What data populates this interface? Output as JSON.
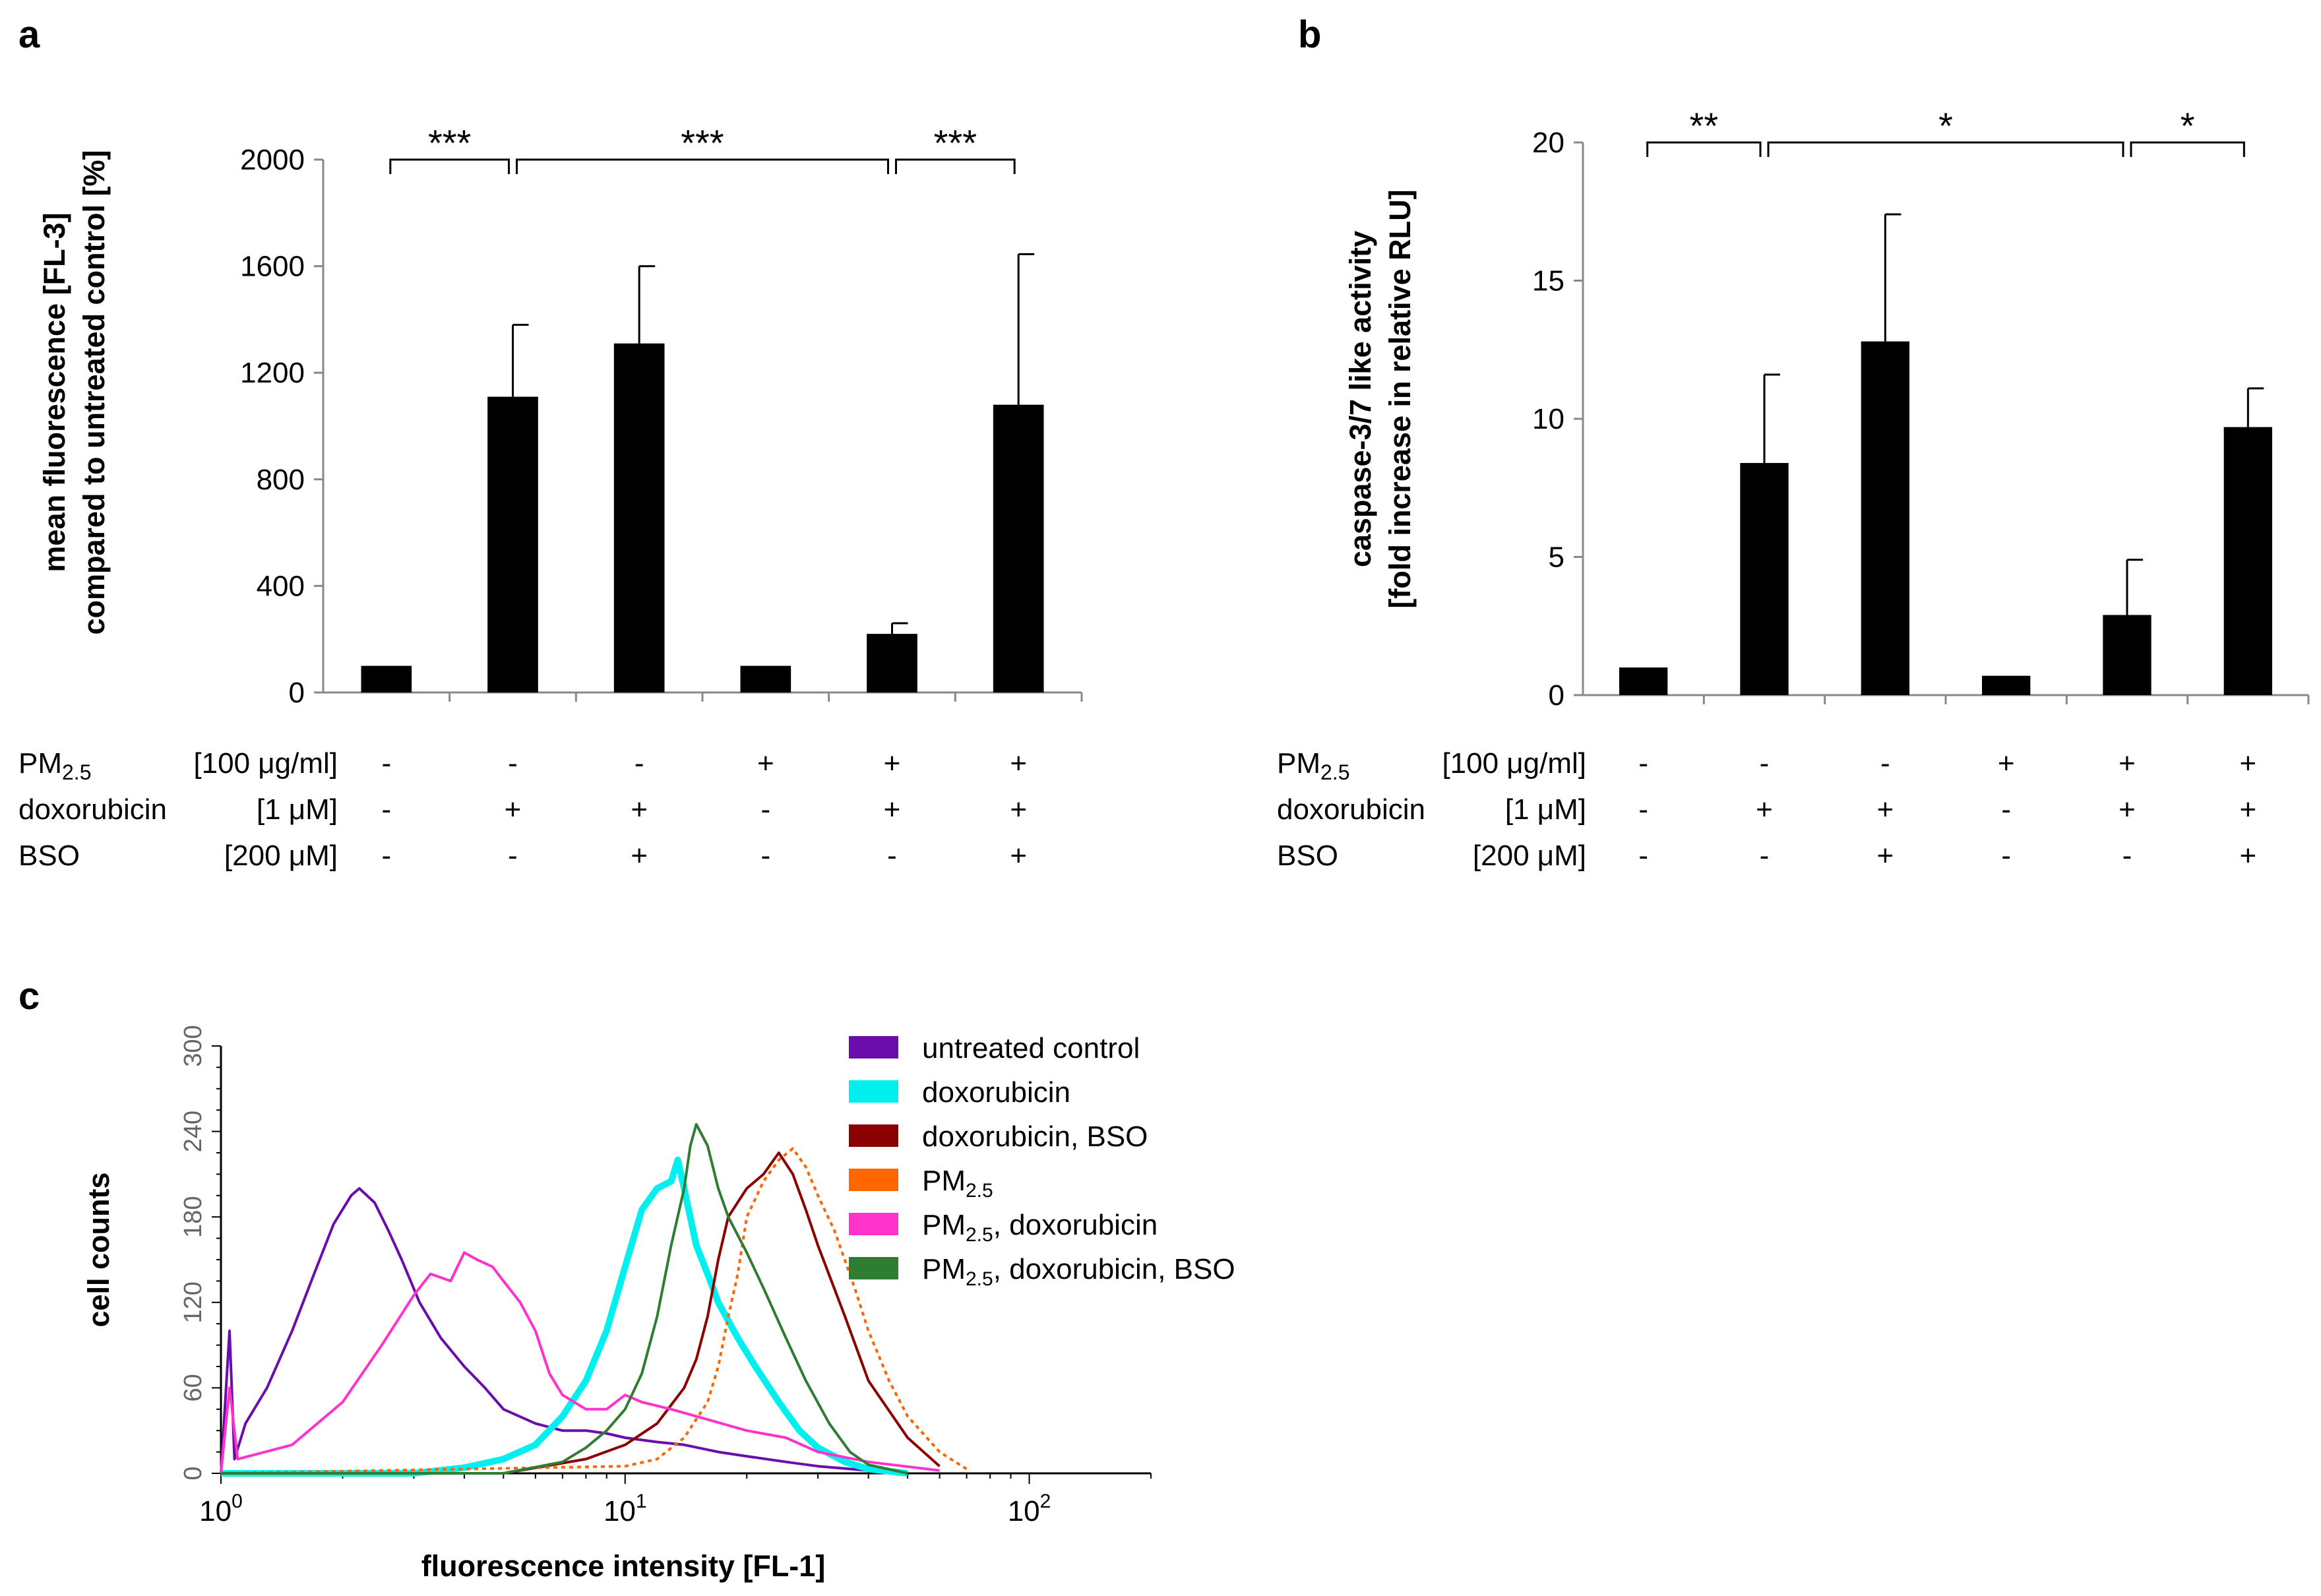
{
  "panels": {
    "a": {
      "label": "a"
    },
    "b": {
      "label": "b"
    },
    "c": {
      "label": "c"
    }
  },
  "conditions": {
    "rows": [
      {
        "name": "PM",
        "sub": "2.5",
        "conc": "[100 μg/ml]",
        "values": [
          "-",
          "-",
          "-",
          "+",
          "+",
          "+"
        ]
      },
      {
        "name": "doxorubicin",
        "sub": "",
        "conc": "[1 μM]",
        "values": [
          "-",
          "+",
          "+",
          "-",
          "+",
          "+"
        ]
      },
      {
        "name": "BSO",
        "sub": "",
        "conc": "[200 μM]",
        "values": [
          "-",
          "-",
          "+",
          "-",
          "-",
          "+"
        ]
      }
    ]
  },
  "chart_data": [
    {
      "panel": "a",
      "type": "bar",
      "ylabel_line1": "mean fluorescence  [FL-3]",
      "ylabel_line2": "compared to untreated control [%]",
      "ylim": [
        0,
        2000
      ],
      "yticks": [
        0,
        400,
        800,
        1200,
        1600,
        2000
      ],
      "values": [
        100,
        1110,
        1310,
        100,
        220,
        1080
      ],
      "errors": [
        0,
        270,
        290,
        0,
        40,
        565
      ],
      "significance": [
        {
          "from": 0,
          "to": 1,
          "label": "***"
        },
        {
          "from": 1,
          "to": 4,
          "label": "***"
        },
        {
          "from": 4,
          "to": 5,
          "label": "***"
        }
      ],
      "sig_level": 2000
    },
    {
      "panel": "b",
      "type": "bar",
      "ylabel_line1": "caspase-3/7 like activity",
      "ylabel_line2": "[fold increase in relative RLU]",
      "ylim": [
        0,
        20
      ],
      "yticks": [
        0,
        5,
        10,
        15,
        20
      ],
      "values": [
        1.0,
        8.4,
        12.8,
        0.7,
        2.9,
        9.7
      ],
      "errors": [
        0,
        3.2,
        4.6,
        0,
        2.0,
        1.4
      ],
      "significance": [
        {
          "from": 0,
          "to": 1,
          "label": "**"
        },
        {
          "from": 1,
          "to": 4,
          "label": "*"
        },
        {
          "from": 4,
          "to": 5,
          "label": "*"
        }
      ],
      "sig_level": 20
    },
    {
      "panel": "c",
      "type": "line",
      "xlabel": "fluorescence  intensity  [FL-1]",
      "ylabel": "cell counts",
      "xscale": "log",
      "xlim": [
        1,
        200
      ],
      "xticks": [
        {
          "base": "10",
          "exp": "0",
          "value": 1
        },
        {
          "base": "10",
          "exp": "1",
          "value": 10
        },
        {
          "base": "10",
          "exp": "2",
          "value": 100
        }
      ],
      "ylim": [
        0,
        300
      ],
      "yticks": [
        0,
        60,
        120,
        180,
        240,
        300
      ],
      "series": [
        {
          "name": "untreated  control",
          "color": "#6a0dad",
          "style": "solid",
          "x": [
            1.0,
            1.05,
            1.08,
            1.15,
            1.3,
            1.5,
            1.7,
            1.9,
            2.1,
            2.2,
            2.4,
            2.6,
            2.8,
            3.1,
            3.5,
            4.0,
            4.5,
            5.0,
            6.0,
            7.0,
            8.0,
            9.0,
            10,
            12,
            14,
            17,
            20,
            25,
            30,
            40
          ],
          "y": [
            0,
            100,
            10,
            35,
            60,
            100,
            140,
            175,
            195,
            200,
            190,
            170,
            150,
            120,
            95,
            75,
            60,
            45,
            35,
            30,
            30,
            28,
            25,
            22,
            20,
            15,
            12,
            8,
            5,
            2
          ]
        },
        {
          "name": "doxorubicin",
          "color": "#00f0f0",
          "style": "thick",
          "x": [
            1.0,
            3.0,
            4.0,
            5.0,
            6.0,
            7.0,
            8.0,
            9.0,
            10,
            11,
            12,
            13,
            13.5,
            14,
            15,
            16,
            17,
            19,
            21,
            24,
            27,
            30,
            35,
            40,
            50
          ],
          "y": [
            0,
            0,
            4,
            10,
            20,
            40,
            65,
            100,
            145,
            185,
            200,
            205,
            220,
            200,
            160,
            140,
            120,
            95,
            75,
            50,
            30,
            18,
            8,
            3,
            0
          ]
        },
        {
          "name": "doxorubicin,  BSO",
          "color": "#8b0000",
          "style": "solid",
          "x": [
            1.0,
            5,
            8,
            10,
            12,
            14,
            15,
            16,
            17,
            18,
            20,
            22,
            24,
            26,
            28,
            30,
            35,
            40,
            50,
            60
          ],
          "y": [
            0,
            0,
            10,
            20,
            35,
            60,
            80,
            110,
            150,
            180,
            200,
            210,
            225,
            210,
            185,
            160,
            110,
            65,
            25,
            5
          ]
        },
        {
          "name": "PM",
          "sub": "2.5",
          "color": "#ff6600",
          "style": "dotted",
          "x": [
            1.0,
            10,
            12,
            14,
            16,
            17,
            18,
            19,
            20,
            22,
            24,
            26,
            28,
            30,
            33,
            37,
            40,
            45,
            50,
            60,
            70
          ],
          "y": [
            0,
            5,
            10,
            25,
            50,
            75,
            110,
            140,
            180,
            205,
            220,
            228,
            215,
            195,
            170,
            130,
            100,
            65,
            40,
            15,
            3
          ]
        },
        {
          "name": "PM",
          "sub": "2.5",
          "suffix": ",  doxorubicin",
          "color": "#ff33cc",
          "style": "solid",
          "x": [
            1.0,
            1.05,
            1.1,
            1.5,
            2.0,
            2.5,
            3.0,
            3.3,
            3.7,
            4.0,
            4.3,
            4.7,
            5.0,
            5.5,
            6.0,
            6.5,
            7.0,
            8.0,
            9.0,
            10,
            11,
            13,
            15,
            20,
            25,
            30,
            40,
            60
          ],
          "y": [
            0,
            60,
            10,
            20,
            50,
            90,
            125,
            140,
            135,
            155,
            150,
            145,
            135,
            120,
            100,
            70,
            55,
            45,
            45,
            55,
            50,
            45,
            40,
            30,
            25,
            15,
            8,
            2
          ]
        },
        {
          "name": "PM",
          "sub": "2.5",
          "suffix": ",  doxorubicin,  BSO",
          "color": "#2e7d32",
          "style": "solid",
          "x": [
            1.0,
            5,
            7,
            8,
            9,
            10,
            11,
            12,
            13,
            14,
            14.5,
            15,
            16,
            17,
            18,
            20,
            22,
            25,
            28,
            32,
            36,
            40,
            50
          ],
          "y": [
            0,
            0,
            8,
            18,
            30,
            45,
            70,
            110,
            160,
            200,
            230,
            245,
            230,
            200,
            180,
            155,
            130,
            95,
            65,
            35,
            15,
            6,
            0
          ]
        }
      ]
    }
  ]
}
